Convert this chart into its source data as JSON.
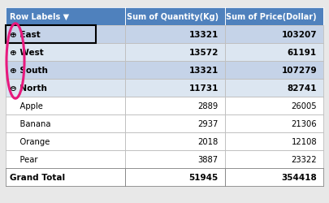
{
  "header": [
    "Row Labels ▼",
    "Sum of Quantity(Kg)",
    "Sum of Price(Dollar)"
  ],
  "rows": [
    {
      "label": "⊕ East",
      "qty": "13321",
      "price": "103207",
      "bold": true,
      "bg": "#c5d3e8",
      "white_bg": false
    },
    {
      "label": "⊕ West",
      "qty": "13572",
      "price": "61191",
      "bold": true,
      "bg": "#dce6f1",
      "white_bg": false
    },
    {
      "label": "⊕ South",
      "qty": "13321",
      "price": "107279",
      "bold": true,
      "bg": "#c5d3e8",
      "white_bg": false
    },
    {
      "label": "⊖ North",
      "qty": "11731",
      "price": "82741",
      "bold": true,
      "bg": "#dce6f1",
      "white_bg": false
    },
    {
      "label": "    Apple",
      "qty": "2889",
      "price": "26005",
      "bold": false,
      "bg": "#ffffff",
      "white_bg": true
    },
    {
      "label": "    Banana",
      "qty": "2937",
      "price": "21306",
      "bold": false,
      "bg": "#ffffff",
      "white_bg": true
    },
    {
      "label": "    Orange",
      "qty": "2018",
      "price": "12108",
      "bold": false,
      "bg": "#ffffff",
      "white_bg": true
    },
    {
      "label": "    Pear",
      "qty": "3887",
      "price": "23322",
      "bold": false,
      "bg": "#ffffff",
      "white_bg": true
    }
  ],
  "footer": {
    "label": "Grand Total",
    "qty": "51945",
    "price": "354418"
  },
  "header_bg": "#4f81bd",
  "header_fg": "#ffffff",
  "circle_color": "#e8197d",
  "fig_width": 4.05,
  "fig_height": 2.51,
  "dpi": 100
}
